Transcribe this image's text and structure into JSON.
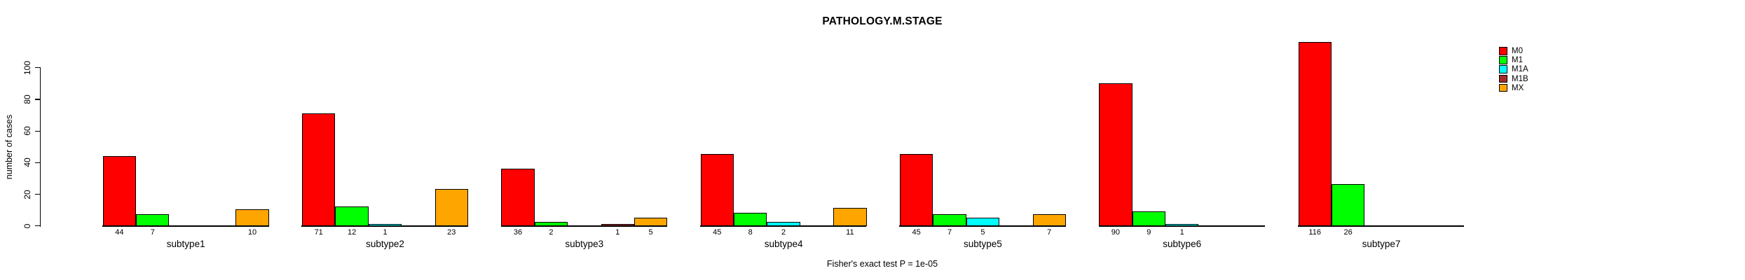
{
  "title": "PATHOLOGY.M.STAGE",
  "caption": "Fisher's exact test P = 1e-05",
  "chart_data": {
    "type": "bar",
    "title": "PATHOLOGY.M.STAGE",
    "xlabel": "",
    "ylabel": "number of cases",
    "ylim": [
      0,
      100
    ],
    "yticks": [
      0,
      20,
      40,
      60,
      80,
      100
    ],
    "grid": false,
    "legend_position": "right",
    "bar_value_labels_shown_when": "value > 0",
    "categories": [
      "subtype1",
      "subtype2",
      "subtype3",
      "subtype4",
      "subtype5",
      "subtype6",
      "subtype7"
    ],
    "series": [
      {
        "name": "M0",
        "color": "#FF0000",
        "values": [
          44,
          71,
          36,
          45,
          45,
          90,
          116
        ]
      },
      {
        "name": "M1",
        "color": "#00FF00",
        "values": [
          7,
          12,
          2,
          8,
          7,
          9,
          26
        ]
      },
      {
        "name": "M1A",
        "color": "#00FFFF",
        "values": [
          0,
          1,
          0,
          2,
          5,
          1,
          0
        ]
      },
      {
        "name": "M1B",
        "color": "#A52A2A",
        "values": [
          0,
          0,
          1,
          0,
          0,
          0,
          0
        ]
      },
      {
        "name": "MX",
        "color": "#FFA500",
        "values": [
          10,
          23,
          5,
          11,
          7,
          0,
          0
        ]
      }
    ]
  }
}
